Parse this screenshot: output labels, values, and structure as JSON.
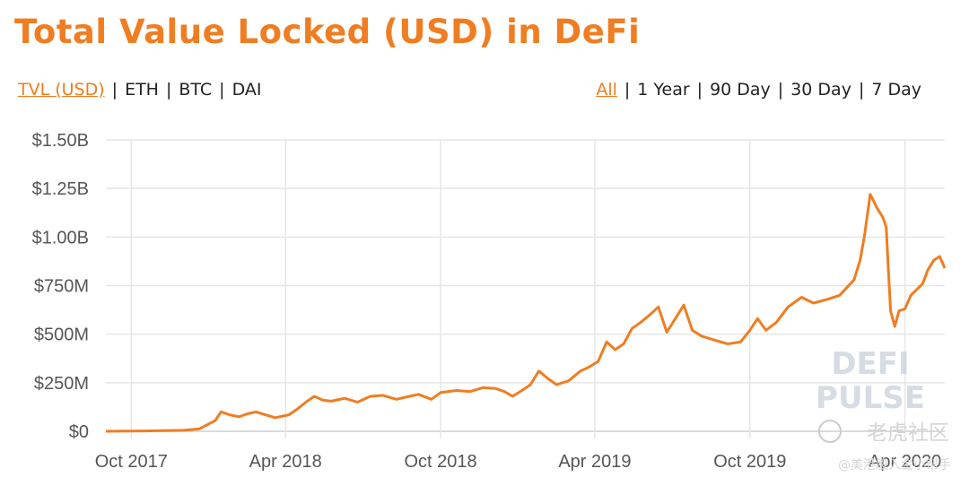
{
  "page": {
    "title": "Total Value Locked (USD) in DeFi"
  },
  "metric_tabs": [
    {
      "label": "TVL (USD)",
      "active": true
    },
    {
      "label": "ETH",
      "active": false
    },
    {
      "label": "BTC",
      "active": false
    },
    {
      "label": "DAI",
      "active": false
    }
  ],
  "range_tabs": [
    {
      "label": "All",
      "active": true
    },
    {
      "label": "1 Year",
      "active": false
    },
    {
      "label": "90 Day",
      "active": false
    },
    {
      "label": "30 Day",
      "active": false
    },
    {
      "label": "7 Day",
      "active": false
    }
  ],
  "separator": "|",
  "colors": {
    "accent": "#f07d21",
    "grid": "#e6e6e6",
    "axis_text": "#555555"
  },
  "watermark": {
    "line1": "DEFI",
    "line2": "PULSE"
  },
  "corner_watermark": {
    "logo": "老虎社区",
    "handle": "@美港股入金小帮手"
  },
  "chart_data": {
    "type": "line",
    "title": "Total Value Locked (USD) in DeFi",
    "ylabel": "",
    "xlabel": "",
    "y_unit": "USD millions",
    "ylim": [
      0,
      1500
    ],
    "y_ticks": [
      {
        "value": 0,
        "label": "$0"
      },
      {
        "value": 250,
        "label": "$250M"
      },
      {
        "value": 500,
        "label": "$500M"
      },
      {
        "value": 750,
        "label": "$750M"
      },
      {
        "value": 1000,
        "label": "$1.00B"
      },
      {
        "value": 1250,
        "label": "$1.25B"
      },
      {
        "value": 1500,
        "label": "$1.50B"
      }
    ],
    "xlim": [
      "2017-09-01",
      "2020-05-18"
    ],
    "x_ticks": [
      {
        "date": "2017-10-01",
        "label": "Oct 2017"
      },
      {
        "date": "2018-04-01",
        "label": "Apr 2018"
      },
      {
        "date": "2018-10-01",
        "label": "Oct 2018"
      },
      {
        "date": "2019-04-01",
        "label": "Apr 2019"
      },
      {
        "date": "2019-10-01",
        "label": "Oct 2019"
      },
      {
        "date": "2020-04-01",
        "label": "Apr 2020"
      }
    ],
    "grid": true,
    "legend": "none",
    "series": [
      {
        "color": "#f07d21",
        "x": [
          "2017-09-01",
          "2017-10-15",
          "2017-12-01",
          "2017-12-20",
          "2018-01-08",
          "2018-01-15",
          "2018-01-25",
          "2018-02-05",
          "2018-02-15",
          "2018-02-25",
          "2018-03-08",
          "2018-03-20",
          "2018-04-05",
          "2018-04-15",
          "2018-04-25",
          "2018-05-05",
          "2018-05-15",
          "2018-05-25",
          "2018-06-10",
          "2018-06-25",
          "2018-07-10",
          "2018-07-25",
          "2018-08-10",
          "2018-08-25",
          "2018-09-05",
          "2018-09-20",
          "2018-10-01",
          "2018-10-20",
          "2018-11-05",
          "2018-11-20",
          "2018-12-05",
          "2018-12-15",
          "2018-12-25",
          "2019-01-05",
          "2019-01-15",
          "2019-01-25",
          "2019-02-05",
          "2019-02-15",
          "2019-03-01",
          "2019-03-15",
          "2019-03-25",
          "2019-04-05",
          "2019-04-15",
          "2019-04-25",
          "2019-05-05",
          "2019-05-15",
          "2019-05-25",
          "2019-06-05",
          "2019-06-15",
          "2019-06-25",
          "2019-07-05",
          "2019-07-15",
          "2019-07-25",
          "2019-08-05",
          "2019-08-20",
          "2019-09-05",
          "2019-09-20",
          "2019-10-01",
          "2019-10-10",
          "2019-10-20",
          "2019-11-01",
          "2019-11-15",
          "2019-12-01",
          "2019-12-15",
          "2020-01-01",
          "2020-01-15",
          "2020-02-01",
          "2020-02-08",
          "2020-02-13",
          "2020-02-20",
          "2020-02-28",
          "2020-03-06",
          "2020-03-10",
          "2020-03-12",
          "2020-03-15",
          "2020-03-20",
          "2020-03-25",
          "2020-04-01",
          "2020-04-08",
          "2020-04-15",
          "2020-04-22",
          "2020-04-28",
          "2020-05-05",
          "2020-05-12",
          "2020-05-18"
        ],
        "y": [
          0,
          2,
          5,
          12,
          55,
          100,
          85,
          75,
          90,
          100,
          85,
          70,
          85,
          115,
          150,
          180,
          160,
          155,
          170,
          150,
          180,
          185,
          165,
          180,
          190,
          165,
          200,
          210,
          205,
          225,
          220,
          205,
          180,
          210,
          240,
          310,
          270,
          240,
          260,
          310,
          330,
          360,
          460,
          420,
          450,
          530,
          560,
          600,
          640,
          510,
          580,
          650,
          520,
          490,
          470,
          450,
          460,
          520,
          580,
          520,
          560,
          640,
          690,
          660,
          680,
          700,
          780,
          880,
          1000,
          1220,
          1150,
          1100,
          1050,
          870,
          620,
          540,
          620,
          630,
          700,
          730,
          760,
          830,
          880,
          900,
          840
        ]
      }
    ]
  }
}
